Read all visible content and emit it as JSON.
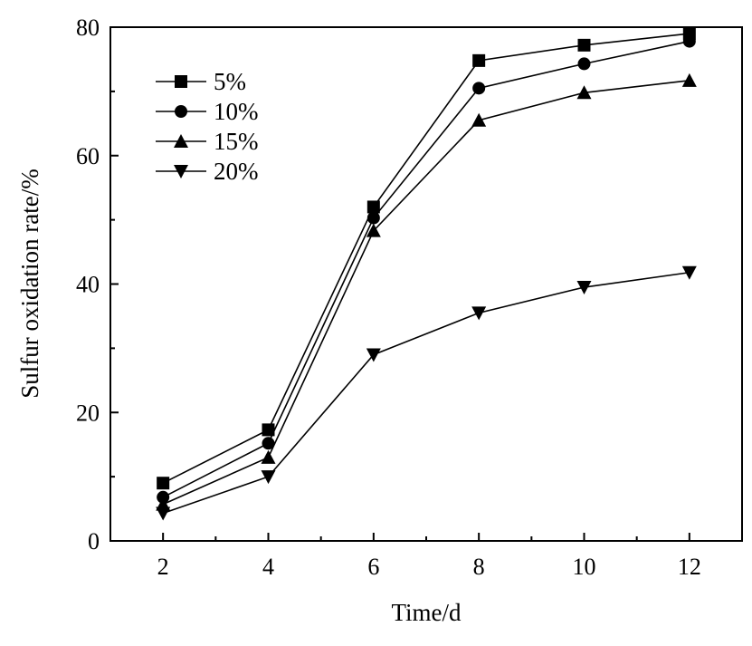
{
  "chart_data": {
    "type": "line",
    "xlabel": "Time/d",
    "ylabel": "Sulfur oxidation rate/%",
    "xlim": [
      1,
      13
    ],
    "ylim": [
      0,
      80
    ],
    "xticks": [
      2,
      4,
      6,
      8,
      10,
      12
    ],
    "yticks": [
      0,
      20,
      40,
      60,
      80
    ],
    "x": [
      2,
      4,
      6,
      8,
      10,
      12
    ],
    "series": [
      {
        "name": "5%",
        "marker": "square",
        "values": [
          9.0,
          17.3,
          52.0,
          74.8,
          77.2,
          79.0
        ]
      },
      {
        "name": "10%",
        "marker": "circle",
        "values": [
          6.8,
          15.2,
          50.3,
          70.5,
          74.3,
          77.8
        ]
      },
      {
        "name": "15%",
        "marker": "triangle-up",
        "values": [
          5.7,
          13.0,
          48.3,
          65.5,
          69.8,
          71.7
        ]
      },
      {
        "name": "20%",
        "marker": "triangle-down",
        "values": [
          4.3,
          10.0,
          29.0,
          35.5,
          39.5,
          41.8
        ]
      }
    ],
    "legend_position": "top-left",
    "grid": false
  }
}
